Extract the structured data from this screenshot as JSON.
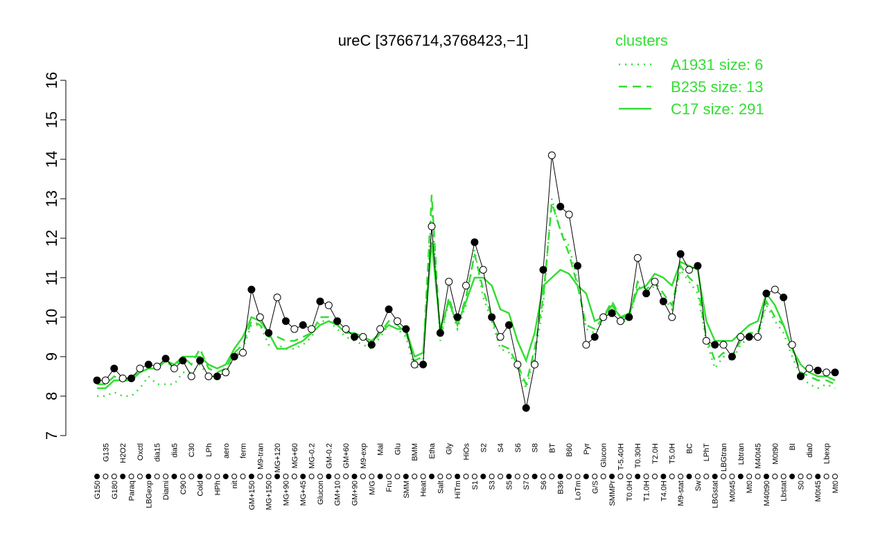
{
  "chart_data": {
    "type": "line",
    "title": "ureC [3766714,3768423,−1]",
    "legend_title": "clusters",
    "legend_position": "top-right",
    "categories": [
      "G150",
      "G135",
      "G180",
      "H2O2",
      "Paraq",
      "Oxctl",
      "LBGexp",
      "dia15",
      "Diami",
      "dia5",
      "C90",
      "C30",
      "Cold",
      "LPh",
      "HPh",
      "aero",
      "nit",
      "ferm",
      "GM+150",
      "M9-tran",
      "MG+150",
      "MG+120",
      "MG+90",
      "MG+60",
      "MG+45",
      "MG-0.2",
      "Glucon",
      "GM-0.2",
      "GM+10",
      "GM+60",
      "GM+90",
      "M9-exp",
      "M/G",
      "Mal",
      "Fru",
      "Glu",
      "SMM",
      "BMM",
      "Heat",
      "Etha",
      "Salt",
      "Gly",
      "HiTm",
      "HiOs",
      "S1",
      "S2",
      "S3",
      "S4",
      "S5",
      "S6",
      "S7",
      "S8",
      "S6",
      "BT",
      "B36",
      "B60",
      "LoTm",
      "Pyr",
      "G/S",
      "Glucon",
      "SMMPr",
      "T-5.40H",
      "T0.0H",
      "T0.30H",
      "T1.0H",
      "T2.0H",
      "T4.0H",
      "T5.0H",
      "M9-stat",
      "BC",
      "Sw",
      "LPhT",
      "LBGstat",
      "LBGtran",
      "M0t45",
      "Lbtran",
      "Mt0",
      "M40t45",
      "M40t90",
      "M0t90",
      "Lbstat",
      "BI",
      "S0",
      "dia0",
      "M0t45",
      "Lbexp",
      "Mt0"
    ],
    "color": "#000000",
    "values": [
      8.4,
      8.4,
      8.7,
      8.45,
      8.45,
      8.7,
      8.8,
      8.75,
      8.95,
      8.7,
      8.9,
      8.5,
      8.9,
      8.5,
      8.5,
      8.6,
      9.0,
      9.1,
      10.7,
      10.0,
      9.6,
      10.5,
      9.9,
      9.7,
      9.8,
      9.7,
      10.4,
      10.3,
      9.9,
      9.7,
      9.5,
      9.5,
      9.3,
      9.7,
      10.2,
      9.9,
      9.7,
      8.8,
      8.8,
      12.3,
      9.6,
      10.9,
      10.0,
      10.8,
      11.9,
      11.2,
      10.0,
      9.5,
      9.8,
      8.8,
      7.7,
      8.8,
      11.2,
      14.1,
      12.8,
      12.6,
      11.3,
      9.3,
      9.5,
      10.0,
      10.1,
      9.9,
      10.0,
      11.5,
      10.6,
      10.9,
      10.4,
      10.0,
      11.6,
      11.2,
      11.3,
      9.4,
      9.3,
      9.3,
      9.0,
      9.5,
      9.5,
      9.5,
      10.6,
      10.7,
      10.5,
      9.3,
      8.5,
      8.7,
      8.65,
      8.6,
      8.6
    ],
    "series": [
      {
        "name": "A1931 size: 6",
        "color": "#33dd33",
        "dash": "dotted",
        "values": [
          8.0,
          8.0,
          8.1,
          8.0,
          8.0,
          8.2,
          8.5,
          8.3,
          8.3,
          8.3,
          8.6,
          8.6,
          8.8,
          8.5,
          8.5,
          8.6,
          9.0,
          9.2,
          9.8,
          9.8,
          9.3,
          9.3,
          9.2,
          9.2,
          9.3,
          9.5,
          9.9,
          9.9,
          9.7,
          9.5,
          9.4,
          9.3,
          9.2,
          9.5,
          9.8,
          9.7,
          9.5,
          8.7,
          8.8,
          12.8,
          9.4,
          10.4,
          9.7,
          10.3,
          11.7,
          10.5,
          9.9,
          9.2,
          9.1,
          8.7,
          8.2,
          9.0,
          10.3,
          13.0,
          12.2,
          11.8,
          10.9,
          9.7,
          9.6,
          9.9,
          10.2,
          9.9,
          9.9,
          10.8,
          10.6,
          10.8,
          10.5,
          10.2,
          11.2,
          10.9,
          10.6,
          9.4,
          8.7,
          9.0,
          8.9,
          9.3,
          9.5,
          9.5,
          10.3,
          9.9,
          9.6,
          9.0,
          8.5,
          8.3,
          8.2,
          8.3,
          8.2
        ]
      },
      {
        "name": "B235 size: 13",
        "color": "#33dd33",
        "dash": "dashed",
        "values": [
          8.3,
          8.3,
          8.5,
          8.4,
          8.4,
          8.6,
          8.7,
          8.7,
          8.9,
          8.7,
          9.0,
          8.8,
          9.2,
          8.7,
          8.6,
          8.7,
          9.1,
          9.3,
          9.9,
          9.8,
          9.5,
          9.5,
          9.4,
          9.4,
          9.5,
          9.6,
          10.0,
          10.0,
          9.8,
          9.7,
          9.5,
          9.5,
          9.3,
          9.6,
          9.9,
          9.8,
          9.6,
          8.9,
          9.0,
          13.1,
          9.5,
          10.5,
          9.8,
          10.5,
          11.6,
          10.7,
          10.0,
          9.3,
          9.2,
          8.8,
          8.3,
          9.2,
          10.5,
          12.9,
          12.2,
          11.6,
          10.8,
          9.8,
          9.7,
          10.0,
          10.4,
          10.0,
          10.0,
          10.9,
          10.7,
          10.9,
          10.6,
          10.3,
          11.3,
          11.0,
          10.8,
          9.5,
          8.9,
          9.1,
          9.0,
          9.4,
          9.6,
          9.6,
          10.4,
          10.0,
          9.8,
          9.2,
          8.6,
          8.5,
          8.4,
          8.4,
          8.3
        ]
      },
      {
        "name": "C17 size: 291",
        "color": "#33dd33",
        "dash": "solid",
        "values": [
          8.2,
          8.2,
          8.4,
          8.4,
          8.5,
          8.6,
          8.7,
          8.7,
          8.9,
          8.8,
          9.0,
          9.0,
          9.0,
          8.8,
          8.7,
          8.8,
          9.2,
          9.5,
          10.0,
          9.9,
          9.6,
          9.2,
          9.2,
          9.3,
          9.4,
          9.6,
          9.8,
          9.9,
          9.8,
          9.6,
          9.6,
          9.5,
          9.4,
          9.6,
          9.8,
          9.7,
          9.7,
          9.0,
          9.1,
          11.9,
          9.7,
          10.4,
          9.8,
          10.4,
          11.0,
          11.0,
          10.8,
          10.2,
          10.1,
          9.4,
          8.9,
          9.6,
          10.8,
          11.0,
          11.2,
          11.1,
          10.8,
          10.6,
          9.9,
          10.0,
          10.3,
          10.0,
          10.1,
          10.7,
          10.8,
          11.1,
          11.0,
          10.8,
          11.4,
          11.3,
          11.2,
          9.9,
          9.4,
          9.4,
          9.4,
          9.6,
          9.8,
          9.9,
          10.6,
          10.3,
          9.8,
          9.2,
          8.8,
          8.6,
          8.5,
          8.5,
          8.4
        ]
      }
    ],
    "ylim": [
      7,
      16
    ],
    "yticks": [
      7,
      8,
      9,
      10,
      11,
      12,
      13,
      14,
      15,
      16
    ],
    "grid": false
  }
}
